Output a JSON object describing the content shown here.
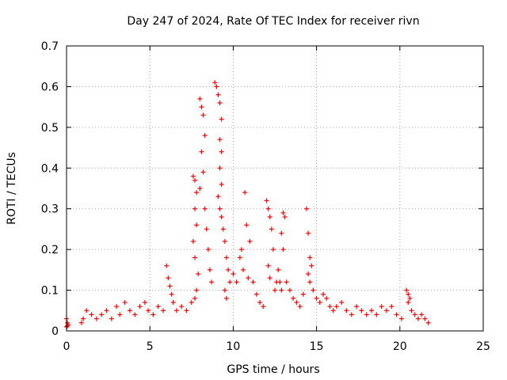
{
  "chart_data": {
    "type": "scatter",
    "title": "Day 247 of 2024, Rate Of TEC Index for receiver rivn",
    "xlabel": "GPS time / hours",
    "ylabel": "ROTI / TECUs",
    "xlim": [
      0,
      25
    ],
    "ylim": [
      0,
      0.7
    ],
    "xticks": [
      0,
      5,
      10,
      15,
      20,
      25
    ],
    "xtick_labels": [
      "0",
      "5",
      "10",
      "15",
      "20",
      "25"
    ],
    "yticks": [
      0,
      0.1,
      0.2,
      0.3,
      0.4,
      0.5,
      0.6,
      0.7
    ],
    "ytick_labels": [
      "0",
      "0.1",
      "0.2",
      "0.3",
      "0.4",
      "0.5",
      "0.6",
      "0.7"
    ],
    "grid": true,
    "marker": "plus",
    "color": "#ff0000",
    "series": [
      {
        "x": [
          0.0,
          0.05,
          0.1,
          0.0,
          0.05,
          0.9,
          1.0,
          1.2,
          1.5,
          1.8,
          2.1,
          2.4,
          2.7,
          3.0,
          3.2,
          3.5,
          3.8,
          4.1,
          4.4,
          4.7,
          4.9,
          5.2,
          5.5,
          5.8,
          6.0,
          6.1,
          6.2,
          6.3,
          6.4,
          6.6,
          6.9,
          7.2,
          7.5,
          7.6,
          7.7,
          7.8,
          7.7,
          7.8,
          7.6,
          7.7,
          7.9,
          7.8,
          7.7,
          8.0,
          8.1,
          8.2,
          8.3,
          8.1,
          8.2,
          8.0,
          8.3,
          8.4,
          8.5,
          8.6,
          8.7,
          8.9,
          9.0,
          9.1,
          9.2,
          9.3,
          9.2,
          9.3,
          9.2,
          9.3,
          9.1,
          9.2,
          9.3,
          9.4,
          9.5,
          9.6,
          9.7,
          9.8,
          9.5,
          9.6,
          10.0,
          10.2,
          10.4,
          10.5,
          10.6,
          10.7,
          10.8,
          10.9,
          11.0,
          11.2,
          11.4,
          11.6,
          11.8,
          12.0,
          12.1,
          12.2,
          12.3,
          12.4,
          12.1,
          12.2,
          12.5,
          12.6,
          12.7,
          12.8,
          12.9,
          13.0,
          13.1,
          12.9,
          13.0,
          13.2,
          13.4,
          13.6,
          13.8,
          14.0,
          14.2,
          14.4,
          14.5,
          14.6,
          14.7,
          14.5,
          14.6,
          14.8,
          15.0,
          15.2,
          15.4,
          15.6,
          15.8,
          16.0,
          16.2,
          16.5,
          16.8,
          17.1,
          17.4,
          17.7,
          18.0,
          18.3,
          18.6,
          18.9,
          19.2,
          19.5,
          19.8,
          20.1,
          20.4,
          20.5,
          20.6,
          20.5,
          20.7,
          20.9,
          21.1,
          21.3,
          21.5,
          21.7
        ],
        "y": [
          0.03,
          0.02,
          0.015,
          0.01,
          0.012,
          0.02,
          0.03,
          0.05,
          0.04,
          0.03,
          0.04,
          0.05,
          0.03,
          0.06,
          0.04,
          0.07,
          0.05,
          0.04,
          0.06,
          0.07,
          0.05,
          0.04,
          0.06,
          0.05,
          0.16,
          0.13,
          0.11,
          0.09,
          0.07,
          0.05,
          0.06,
          0.05,
          0.07,
          0.38,
          0.37,
          0.34,
          0.3,
          0.26,
          0.22,
          0.18,
          0.14,
          0.1,
          0.08,
          0.57,
          0.55,
          0.53,
          0.48,
          0.44,
          0.39,
          0.35,
          0.3,
          0.25,
          0.2,
          0.15,
          0.12,
          0.61,
          0.6,
          0.58,
          0.56,
          0.52,
          0.47,
          0.44,
          0.4,
          0.36,
          0.33,
          0.3,
          0.28,
          0.25,
          0.22,
          0.18,
          0.15,
          0.12,
          0.1,
          0.08,
          0.14,
          0.12,
          0.18,
          0.2,
          0.15,
          0.34,
          0.26,
          0.13,
          0.22,
          0.12,
          0.09,
          0.07,
          0.06,
          0.32,
          0.3,
          0.28,
          0.25,
          0.2,
          0.16,
          0.13,
          0.1,
          0.12,
          0.15,
          0.12,
          0.1,
          0.29,
          0.28,
          0.24,
          0.2,
          0.12,
          0.1,
          0.08,
          0.07,
          0.06,
          0.09,
          0.3,
          0.24,
          0.18,
          0.16,
          0.14,
          0.12,
          0.1,
          0.08,
          0.07,
          0.09,
          0.08,
          0.06,
          0.05,
          0.06,
          0.07,
          0.05,
          0.04,
          0.06,
          0.05,
          0.04,
          0.05,
          0.04,
          0.06,
          0.05,
          0.06,
          0.04,
          0.03,
          0.1,
          0.09,
          0.08,
          0.07,
          0.05,
          0.04,
          0.03,
          0.04,
          0.03,
          0.02
        ]
      }
    ]
  }
}
